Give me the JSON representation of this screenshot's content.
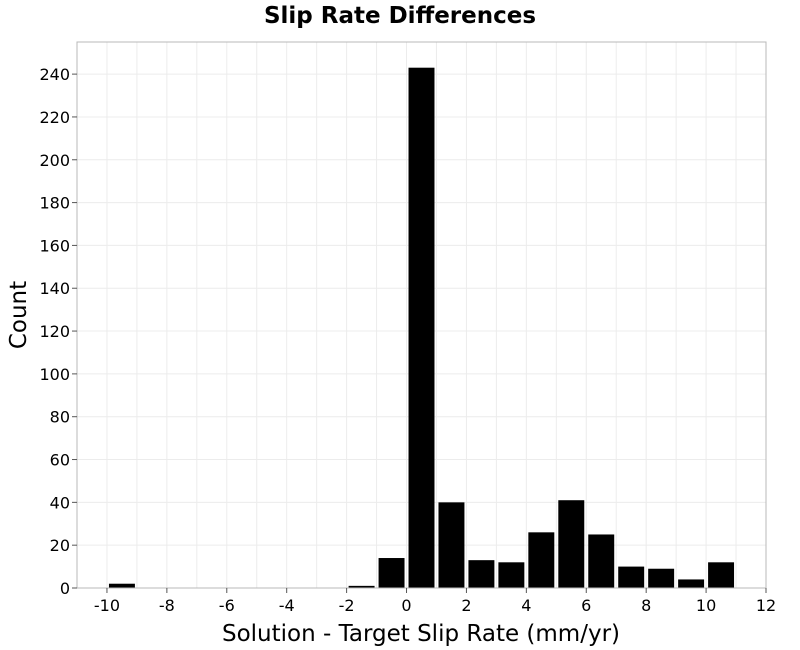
{
  "chart_data": {
    "type": "bar",
    "title": "Slip Rate Differences",
    "xlabel": "Solution - Target Slip Rate (mm/yr)",
    "ylabel": "Count",
    "xlim": [
      -11,
      12
    ],
    "ylim": [
      0,
      255
    ],
    "xticks": [
      -10,
      -8,
      -6,
      -4,
      -2,
      0,
      2,
      4,
      6,
      8,
      10,
      12
    ],
    "xtick_labels": [
      "-10",
      "-8",
      "-6",
      "-4",
      "-2",
      "0",
      "2",
      "4",
      "6",
      "8",
      "10",
      "12"
    ],
    "yticks": [
      0,
      20,
      40,
      60,
      80,
      100,
      120,
      140,
      160,
      180,
      200,
      220,
      240
    ],
    "ytick_labels": [
      "0",
      "20",
      "40",
      "60",
      "80",
      "100",
      "120",
      "140",
      "160",
      "180",
      "200",
      "220",
      "240"
    ],
    "bin_width": 1,
    "bins": [
      {
        "x0": -10,
        "x1": -9,
        "value": 2
      },
      {
        "x0": -9,
        "x1": -8,
        "value": 0
      },
      {
        "x0": -8,
        "x1": -7,
        "value": 0
      },
      {
        "x0": -7,
        "x1": -6,
        "value": 0
      },
      {
        "x0": -6,
        "x1": -5,
        "value": 0
      },
      {
        "x0": -5,
        "x1": -4,
        "value": 0
      },
      {
        "x0": -4,
        "x1": -3,
        "value": 0
      },
      {
        "x0": -3,
        "x1": -2,
        "value": 0
      },
      {
        "x0": -2,
        "x1": -1,
        "value": 1
      },
      {
        "x0": -1,
        "x1": 0,
        "value": 14
      },
      {
        "x0": 0,
        "x1": 1,
        "value": 243
      },
      {
        "x0": 1,
        "x1": 2,
        "value": 40
      },
      {
        "x0": 2,
        "x1": 3,
        "value": 13
      },
      {
        "x0": 3,
        "x1": 4,
        "value": 12
      },
      {
        "x0": 4,
        "x1": 5,
        "value": 26
      },
      {
        "x0": 5,
        "x1": 6,
        "value": 41
      },
      {
        "x0": 6,
        "x1": 7,
        "value": 25
      },
      {
        "x0": 7,
        "x1": 8,
        "value": 10
      },
      {
        "x0": 8,
        "x1": 9,
        "value": 9
      },
      {
        "x0": 9,
        "x1": 10,
        "value": 4
      },
      {
        "x0": 10,
        "x1": 11,
        "value": 12
      }
    ],
    "grid": true,
    "legend": "none",
    "bar_color": "#000000"
  }
}
